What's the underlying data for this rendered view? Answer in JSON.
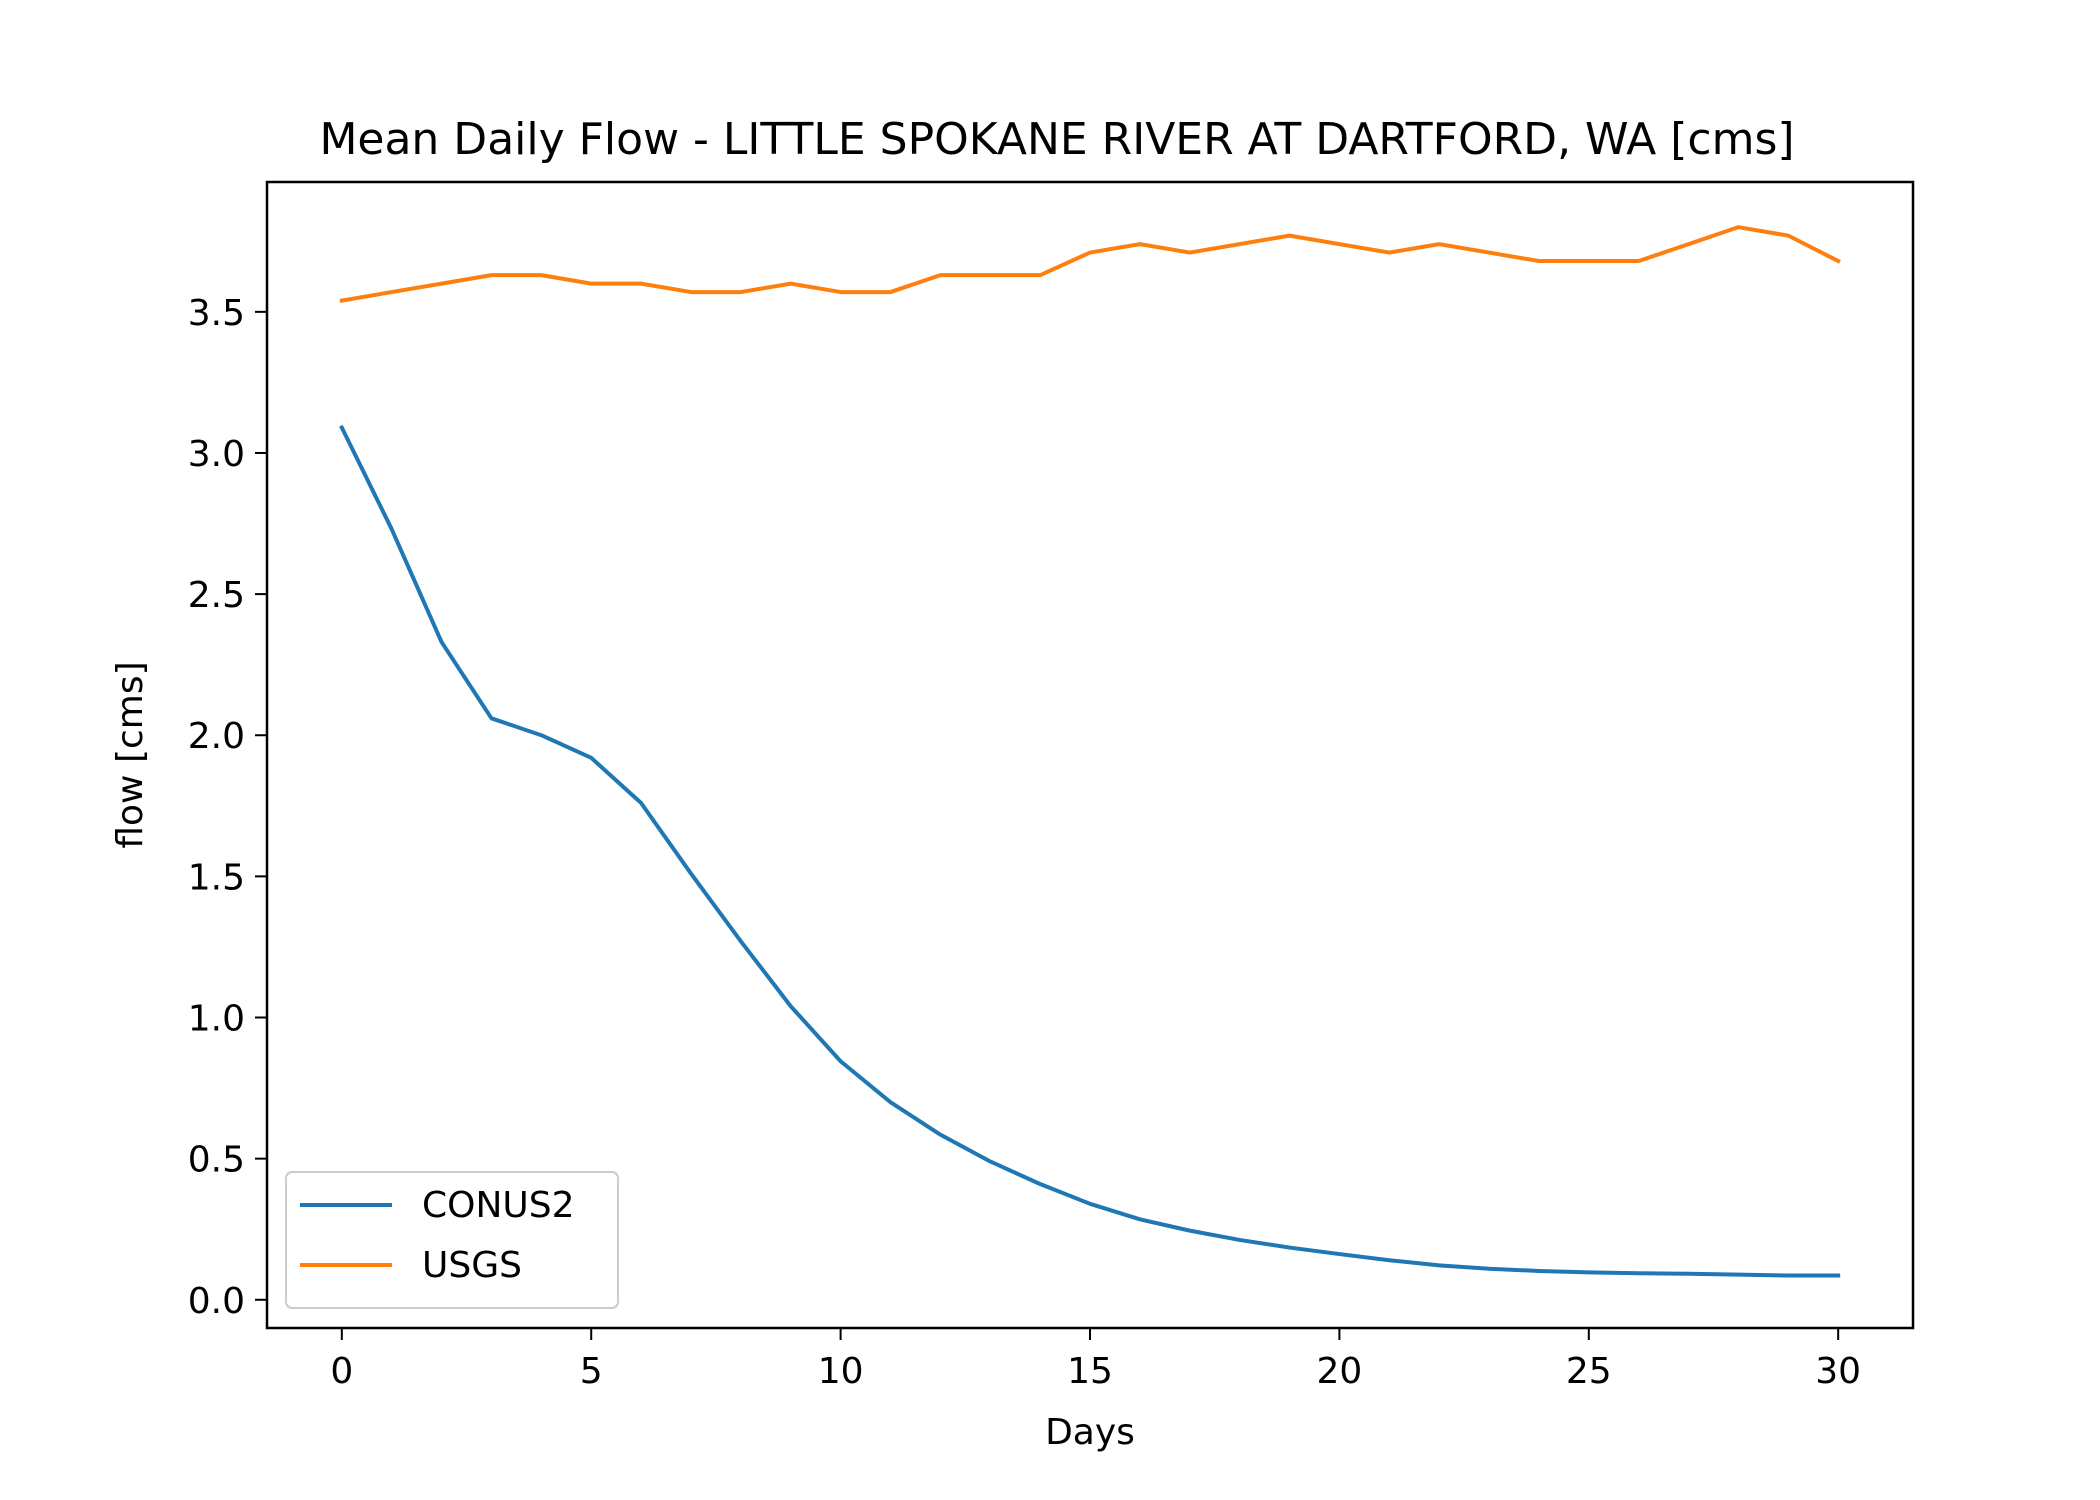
{
  "chart_data": {
    "type": "line",
    "title": "Mean Daily Flow - LITTLE SPOKANE RIVER AT DARTFORD, WA [cms]",
    "xlabel": "Days",
    "ylabel": "flow [cms]",
    "xlim": [
      -1.5,
      31.5
    ],
    "ylim": [
      -0.1,
      3.96
    ],
    "xticks": [
      0,
      5,
      10,
      15,
      20,
      25,
      30
    ],
    "xtick_labels": [
      "0",
      "5",
      "10",
      "15",
      "20",
      "25",
      "30"
    ],
    "yticks": [
      0.0,
      0.5,
      1.0,
      1.5,
      2.0,
      2.5,
      3.0,
      3.5
    ],
    "ytick_labels": [
      "0.0",
      "0.5",
      "1.0",
      "1.5",
      "2.0",
      "2.5",
      "3.0",
      "3.5"
    ],
    "grid": false,
    "legend_position": "lower-left",
    "x": [
      0,
      1,
      2,
      3,
      4,
      5,
      6,
      7,
      8,
      9,
      10,
      11,
      12,
      13,
      14,
      15,
      16,
      17,
      18,
      19,
      20,
      21,
      22,
      23,
      24,
      25,
      26,
      27,
      28,
      29,
      30
    ],
    "series": [
      {
        "name": "CONUS2",
        "color": "#1f77b4",
        "values": [
          3.09,
          2.73,
          2.33,
          2.06,
          2.0,
          1.92,
          1.76,
          1.51,
          1.27,
          1.04,
          0.845,
          0.7,
          0.585,
          0.49,
          0.41,
          0.34,
          0.285,
          0.245,
          0.212,
          0.185,
          0.162,
          0.14,
          0.122,
          0.11,
          0.102,
          0.097,
          0.094,
          0.092,
          0.089,
          0.086,
          0.086
        ]
      },
      {
        "name": "USGS",
        "color": "#ff7f0e",
        "values": [
          3.54,
          3.57,
          3.6,
          3.63,
          3.63,
          3.6,
          3.6,
          3.57,
          3.57,
          3.6,
          3.57,
          3.57,
          3.63,
          3.63,
          3.63,
          3.71,
          3.74,
          3.71,
          3.74,
          3.77,
          3.74,
          3.71,
          3.74,
          3.71,
          3.68,
          3.68,
          3.68,
          3.74,
          3.8,
          3.77,
          3.68
        ]
      }
    ]
  }
}
